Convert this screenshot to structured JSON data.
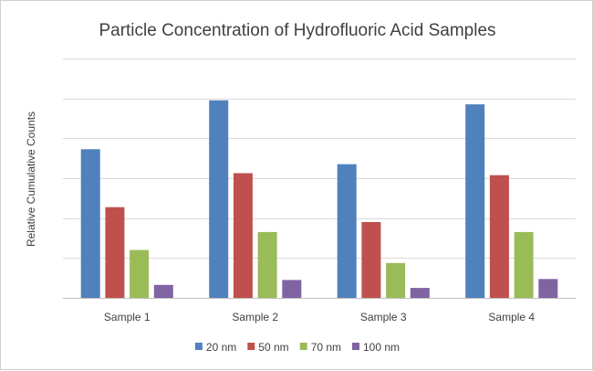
{
  "chart_data": {
    "type": "bar",
    "title": "Particle Concentration of Hydrofluoric Acid Samples",
    "xlabel": "",
    "ylabel": "Relative Cumulative Counts",
    "categories": [
      "Sample 1",
      "Sample 2",
      "Sample 3",
      "Sample 4"
    ],
    "series": [
      {
        "name": "20 nm",
        "color": "#4F81BD",
        "values": [
          7.45,
          9.9,
          6.7,
          9.7
        ]
      },
      {
        "name": "50 nm",
        "color": "#C0504D",
        "values": [
          4.55,
          6.25,
          3.8,
          6.15
        ]
      },
      {
        "name": "70 nm",
        "color": "#9BBB59",
        "values": [
          2.4,
          3.3,
          1.75,
          3.3
        ]
      },
      {
        "name": "100 nm",
        "color": "#8064A2",
        "values": [
          0.65,
          0.9,
          0.5,
          0.95
        ]
      }
    ],
    "ylim": [
      0,
      12
    ],
    "y_gridlines": [
      2,
      4,
      6,
      8,
      10,
      12
    ],
    "y_tick_labels_shown": false,
    "grid": true,
    "legend_position": "bottom"
  }
}
